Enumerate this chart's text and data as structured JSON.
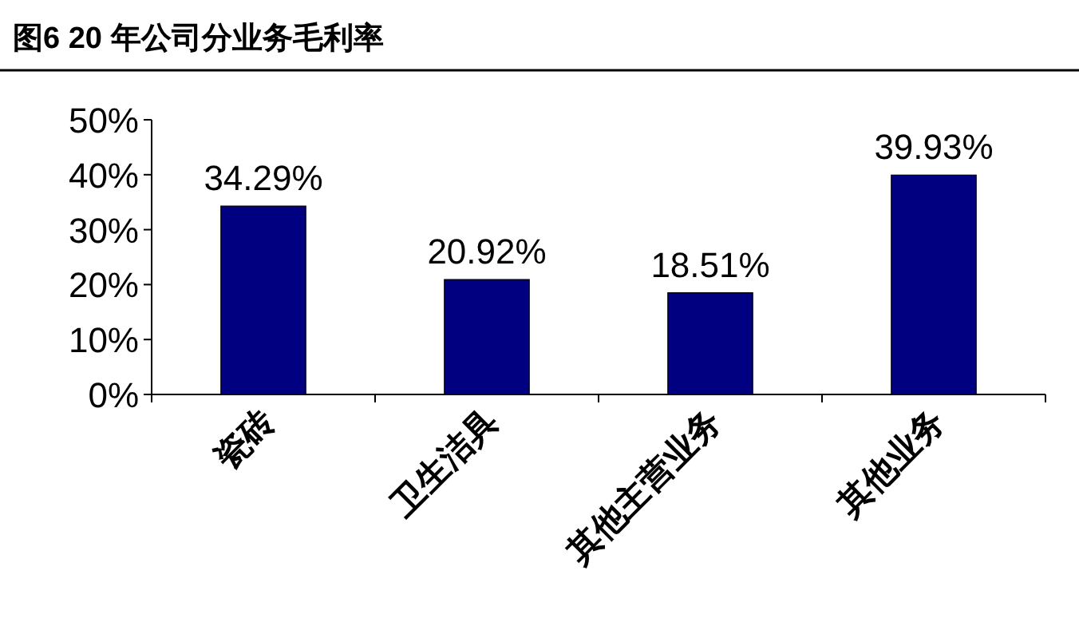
{
  "chart_data": {
    "type": "bar",
    "title": "图6   20 年公司分业务毛利率",
    "categories": [
      "瓷砖",
      "卫生洁具",
      "其他主营业务",
      "其他业务"
    ],
    "values": [
      34.29,
      20.92,
      18.51,
      39.93
    ],
    "value_labels": [
      "34.29%",
      "20.92%",
      "18.51%",
      "39.93%"
    ],
    "color": "#000080",
    "ylim": [
      0,
      50
    ],
    "yticks": [
      {
        "value": 0,
        "label": "0%"
      },
      {
        "value": 10,
        "label": "10%"
      },
      {
        "value": 20,
        "label": "20%"
      },
      {
        "value": 30,
        "label": "30%"
      },
      {
        "value": 40,
        "label": "40%"
      },
      {
        "value": 50,
        "label": "50%"
      }
    ],
    "grid": false
  }
}
